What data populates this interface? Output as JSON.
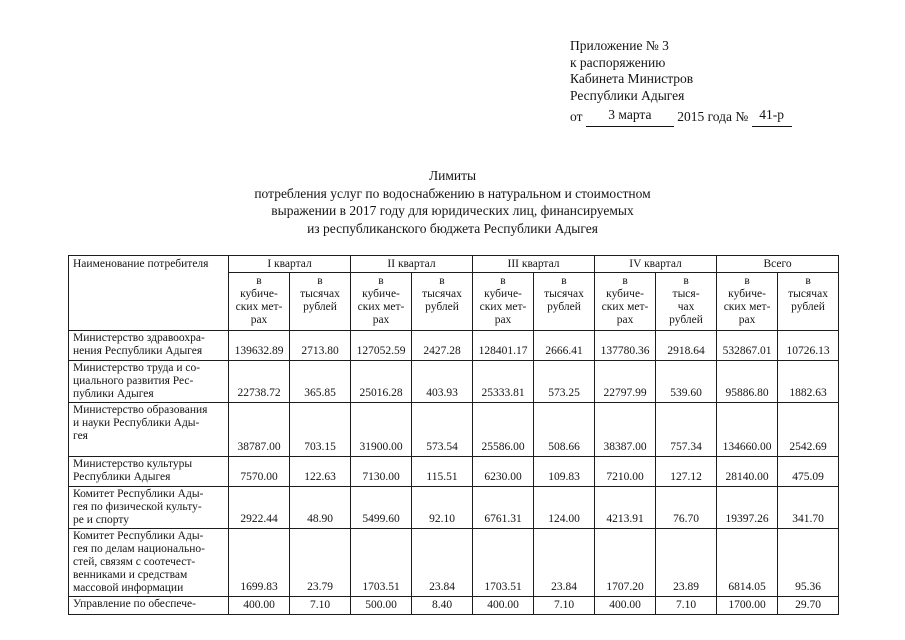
{
  "appendix": {
    "line1": "Приложение № 3",
    "line2": "к распоряжению",
    "line3": "Кабинета Министров",
    "line4": "Республики Адыгея",
    "date_prefix": "от",
    "date_value": "3 марта",
    "date_middle": "2015 года №",
    "number_value": "41-р"
  },
  "title": {
    "line1": "Лимиты",
    "line2": "потребления услуг по водоснабжению в натуральном и стоимостном",
    "line3": "выражении в 2017 году для юридических лиц, финансируемых",
    "line4": "из республиканского бюджета Республики Адыгея"
  },
  "table": {
    "name_header": "Наименование потребителя",
    "groups": [
      "I квартал",
      "II квартал",
      "III квартал",
      "IV квартал",
      "Всего"
    ],
    "subheaders": [
      "в\nкубиче-\nских мет-\nрах",
      "в\nтысячах\nрублей",
      "в\nкубиче-\nских мет-\nрах",
      "в\nтысячах\nрублей",
      "в\nкубиче-\nских мет-\nрах",
      "в\nтысячах\nрублей",
      "в\nкубиче-\nских мет-\nрах",
      "в\nтыся-\nчах\nрублей",
      "в\nкубиче-\nских мет-\nрах",
      "в\nтысячах\nрублей"
    ],
    "rows": [
      {
        "name": "Министерство здравоохра-\nнения Республики Адыгея",
        "values": [
          "139632.89",
          "2713.80",
          "127052.59",
          "2427.28",
          "128401.17",
          "2666.41",
          "137780.36",
          "2918.64",
          "532867.01",
          "10726.13"
        ]
      },
      {
        "name": "Министерство труда и со-\nциального развития Рес-\nпублики Адыгея",
        "values": [
          "22738.72",
          "365.85",
          "25016.28",
          "403.93",
          "25333.81",
          "573.25",
          "22797.99",
          "539.60",
          "95886.80",
          "1882.63"
        ]
      },
      {
        "name": "Министерство образования\nи науки Республики Ады-\nгея",
        "values": [
          "38787.00",
          "703.15",
          "31900.00",
          "573.54",
          "25586.00",
          "508.66",
          "38387.00",
          "757.34",
          "134660.00",
          "2542.69"
        ]
      },
      {
        "name": "Министерство культуры\nРеспублики Адыгея",
        "values": [
          "7570.00",
          "122.63",
          "7130.00",
          "115.51",
          "6230.00",
          "109.83",
          "7210.00",
          "127.12",
          "28140.00",
          "475.09"
        ]
      },
      {
        "name": "Комитет Республики Ады-\nгея по физической культу-\nре и спорту",
        "values": [
          "2922.44",
          "48.90",
          "5499.60",
          "92.10",
          "6761.31",
          "124.00",
          "4213.91",
          "76.70",
          "19397.26",
          "341.70"
        ]
      },
      {
        "name": "Комитет Республики Ады-\nгея по делам национально-\nстей, связям с соотечест-\nвенниками и средствам\nмассовой информации",
        "values": [
          "1699.83",
          "23.79",
          "1703.51",
          "23.84",
          "1703.51",
          "23.84",
          "1707.20",
          "23.89",
          "6814.05",
          "95.36"
        ]
      },
      {
        "name": "Управление по обеспече-",
        "values": [
          "400.00",
          "7.10",
          "500.00",
          "8.40",
          "400.00",
          "7.10",
          "400.00",
          "7.10",
          "1700.00",
          "29.70"
        ]
      }
    ]
  }
}
